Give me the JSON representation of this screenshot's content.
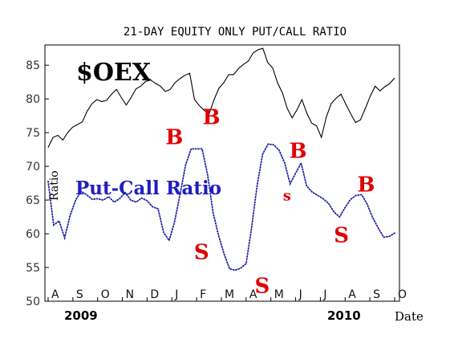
{
  "chart_data": {
    "type": "line",
    "title": "21-DAY EQUITY ONLY PUT/CALL RATIO",
    "ylabel": "Ratio",
    "xlabel": "Date",
    "ylim": [
      50,
      88
    ],
    "yticks": [
      "85",
      "80",
      "75",
      "70",
      "65",
      "60",
      "55",
      "50"
    ],
    "months": [
      "A",
      "S",
      "O",
      "N",
      "D",
      "J",
      "F",
      "M",
      "A",
      "M",
      "J",
      "J",
      "A",
      "S",
      "O"
    ],
    "years": [
      "2009",
      "2010"
    ],
    "series": [
      {
        "name": "$OEX",
        "color": "#000000",
        "style": "solid",
        "values": [
          72.8,
          74.3,
          74.6,
          73.9,
          75.0,
          75.8,
          76.2,
          76.6,
          78.2,
          79.3,
          79.9,
          79.6,
          79.8,
          80.7,
          81.4,
          80.2,
          79.1,
          80.2,
          81.5,
          81.9,
          82.6,
          82.8,
          82.3,
          81.9,
          81.1,
          81.4,
          82.4,
          83.0,
          83.5,
          83.8,
          79.9,
          79.0,
          78.3,
          77.8,
          79.9,
          81.6,
          82.4,
          83.6,
          83.6,
          84.5,
          85.1,
          85.6,
          86.8,
          87.3,
          87.5,
          85.4,
          84.6,
          82.4,
          80.9,
          78.6,
          77.2,
          78.4,
          79.9,
          77.9,
          76.4,
          76.0,
          74.3,
          77.3,
          79.3,
          80.1,
          80.7,
          79.2,
          77.8,
          76.5,
          76.9,
          78.6,
          80.4,
          81.9,
          81.2,
          81.8,
          82.3,
          83.1
        ]
      },
      {
        "name": "Put-Call Ratio",
        "color": "#1f1fa8",
        "style": "dotted",
        "values": [
          67.8,
          61.3,
          61.9,
          59.4,
          62.7,
          65.0,
          66.3,
          65.8,
          65.1,
          65.2,
          65.0,
          65.5,
          64.7,
          65.2,
          66.1,
          65.0,
          64.7,
          65.3,
          64.9,
          64.0,
          63.7,
          60.2,
          59.0,
          61.8,
          65.9,
          70.2,
          72.6,
          72.6,
          72.6,
          68.7,
          63.1,
          59.7,
          57.0,
          54.8,
          54.6,
          54.9,
          55.6,
          60.9,
          67.2,
          71.8,
          73.3,
          73.2,
          72.4,
          70.5,
          67.4,
          69.0,
          70.5,
          67.1,
          66.2,
          65.7,
          65.2,
          64.5,
          63.2,
          62.5,
          63.9,
          65.1,
          65.7,
          65.8,
          64.4,
          62.4,
          60.9,
          59.5,
          59.6,
          60.1
        ]
      }
    ],
    "annotations": [
      {
        "text": "$OEX",
        "kind": "series_label"
      },
      {
        "text": "Put-Call Ratio",
        "kind": "series_label"
      },
      {
        "text": "Ratio",
        "kind": "axis_label"
      },
      {
        "text": "S",
        "x_month": "F",
        "y": 57.5,
        "kind": "sell"
      },
      {
        "text": "B",
        "x_month": "M",
        "y": 77.5,
        "kind": "buy"
      },
      {
        "text": "S",
        "x_month": "M",
        "y": 52.5,
        "kind": "sell"
      },
      {
        "text": "B",
        "x_month": "J",
        "y": 74.5,
        "kind": "buy"
      },
      {
        "text": "B",
        "x_month": "J",
        "y": 72.5,
        "kind": "buy"
      },
      {
        "text": "s",
        "x_month": "J",
        "y": 65.8,
        "kind": "sell"
      },
      {
        "text": "S",
        "x_month": "A",
        "y": 60.0,
        "kind": "sell"
      },
      {
        "text": "B",
        "x_month": "S",
        "y": 67.5,
        "kind": "buy"
      }
    ],
    "grid": false,
    "legend": "none"
  }
}
